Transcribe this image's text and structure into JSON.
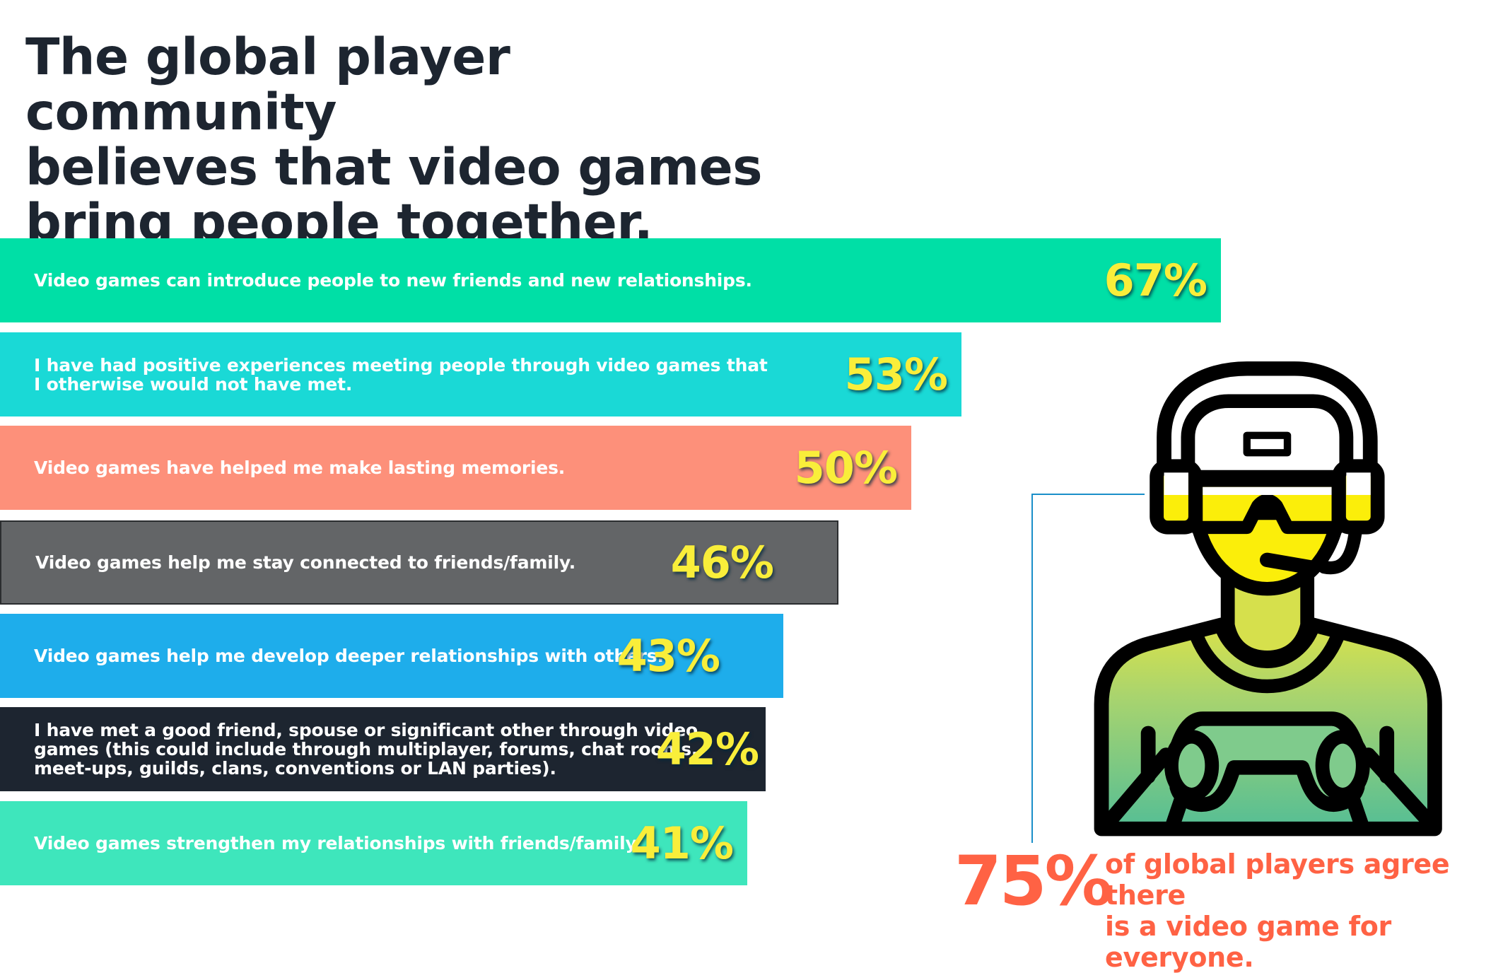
{
  "title_lines": [
    "The global player community",
    "believes that video games",
    "bring people together."
  ],
  "chart_data": {
    "type": "bar",
    "orientation": "horizontal",
    "title": "The global player community believes that video games bring people together.",
    "categories": [
      "Video games can introduce people to new friends and new relationships.",
      "I have had positive experiences meeting people through video games that\nI otherwise would not have met.",
      "Video games have helped me make lasting memories.",
      "Video games help me stay connected to friends/family.",
      "Video games help me develop deeper relationships with others.",
      "I have met a good friend, spouse or significant other through video\ngames (this could include through multiplayer, forums, chat rooms,\nmeet-ups, guilds, clans, conventions or LAN parties).",
      "Video games strengthen my relationships with friends/family."
    ],
    "values": [
      67,
      53,
      50,
      46,
      43,
      42,
      41
    ],
    "value_labels": [
      "67%",
      "53%",
      "50%",
      "46%",
      "43%",
      "42%",
      "41%"
    ],
    "unit": "%",
    "xlim": [
      0,
      100
    ],
    "grid": false,
    "colors": [
      "#00dfa6",
      "#1ad9d6",
      "#fd907a",
      "#636567",
      "#1eadeb",
      "#1d2530",
      "#3ee6bc"
    ],
    "label_color": "#f9ee3a"
  },
  "callout": {
    "value": "75%",
    "text_lines": [
      "of global players agree there",
      "is a video game for everyone."
    ],
    "color": "#ff6244",
    "icon": "gamer-with-headset-and-controller-icon"
  }
}
